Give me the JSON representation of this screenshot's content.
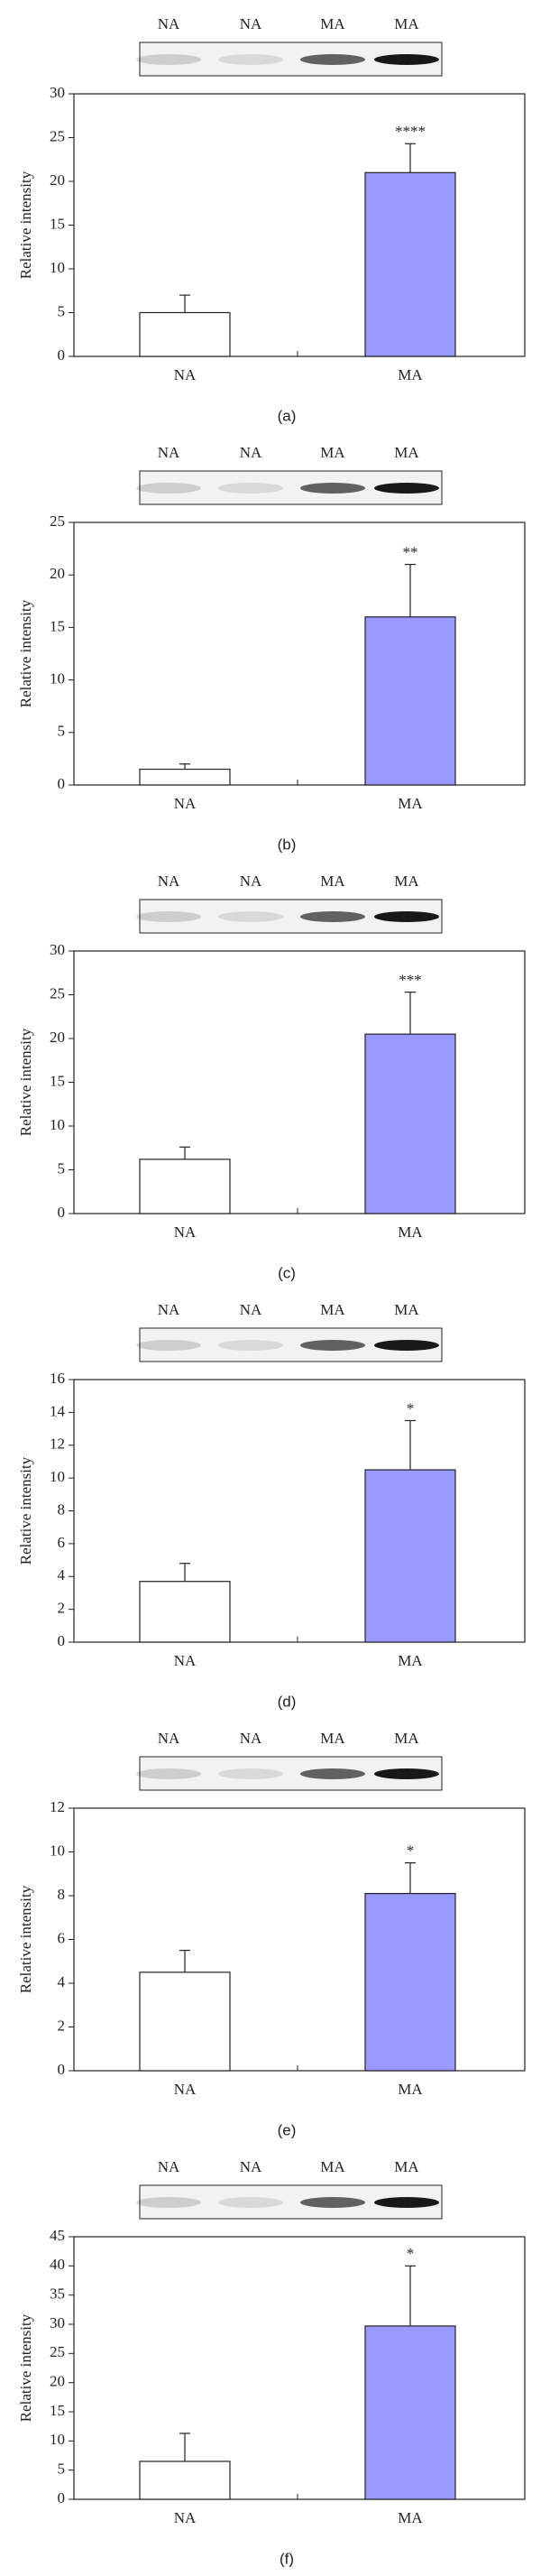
{
  "chart_data": [
    {
      "type": "bar",
      "lane_labels": [
        "NA",
        "NA",
        "MA",
        "MA"
      ],
      "y_label": "Relative intensity",
      "categories": [
        "NA",
        "MA"
      ],
      "values": [
        5,
        21
      ],
      "errors": [
        2,
        3.3
      ],
      "colors": [
        "#ffffff",
        "#9999ff"
      ],
      "annotation": "****",
      "ylim": [
        0,
        30
      ],
      "yticks": [
        0,
        5,
        10,
        15,
        20,
        25,
        30
      ],
      "caption": "(a)"
    },
    {
      "type": "bar",
      "lane_labels": [
        "NA",
        "NA",
        "MA",
        "MA"
      ],
      "y_label": "Relative intensity",
      "categories": [
        "NA",
        "MA"
      ],
      "values": [
        1.5,
        16
      ],
      "errors": [
        0.5,
        5
      ],
      "colors": [
        "#ffffff",
        "#9999ff"
      ],
      "annotation": "**",
      "ylim": [
        0,
        25
      ],
      "yticks": [
        0,
        5,
        10,
        15,
        20,
        25
      ],
      "caption": "(b)"
    },
    {
      "type": "bar",
      "lane_labels": [
        "NA",
        "NA",
        "MA",
        "MA"
      ],
      "y_label": "Relative intensity",
      "categories": [
        "NA",
        "MA"
      ],
      "values": [
        6.2,
        20.5
      ],
      "errors": [
        1.4,
        4.8
      ],
      "colors": [
        "#ffffff",
        "#9999ff"
      ],
      "annotation": "***",
      "ylim": [
        0,
        30
      ],
      "yticks": [
        0,
        5,
        10,
        15,
        20,
        25,
        30
      ],
      "caption": "(c)"
    },
    {
      "type": "bar",
      "lane_labels": [
        "NA",
        "NA",
        "MA",
        "MA"
      ],
      "y_label": "Relative intensity",
      "categories": [
        "NA",
        "MA"
      ],
      "values": [
        3.7,
        10.5
      ],
      "errors": [
        1.1,
        3
      ],
      "colors": [
        "#ffffff",
        "#9999ff"
      ],
      "annotation": "*",
      "ylim": [
        0,
        16
      ],
      "yticks": [
        0,
        2,
        4,
        6,
        8,
        10,
        12,
        14,
        16
      ],
      "caption": "(d)"
    },
    {
      "type": "bar",
      "lane_labels": [
        "NA",
        "NA",
        "MA",
        "MA"
      ],
      "y_label": "Relative intensity",
      "categories": [
        "NA",
        "MA"
      ],
      "values": [
        4.5,
        8.1
      ],
      "errors": [
        1,
        1.4
      ],
      "colors": [
        "#ffffff",
        "#9999ff"
      ],
      "annotation": "*",
      "ylim": [
        0,
        12
      ],
      "yticks": [
        0,
        2,
        4,
        6,
        8,
        10,
        12
      ],
      "caption": "(e)"
    },
    {
      "type": "bar",
      "lane_labels": [
        "NA",
        "NA",
        "MA",
        "MA"
      ],
      "y_label": "Relative intensity",
      "categories": [
        "NA",
        "MA"
      ],
      "values": [
        6.5,
        29.7
      ],
      "errors": [
        4.8,
        10.3
      ],
      "colors": [
        "#ffffff",
        "#9999ff"
      ],
      "annotation": "*",
      "ylim": [
        0,
        45
      ],
      "yticks": [
        0,
        5,
        10,
        15,
        20,
        25,
        30,
        35,
        40,
        45
      ],
      "caption": "(f)"
    }
  ]
}
